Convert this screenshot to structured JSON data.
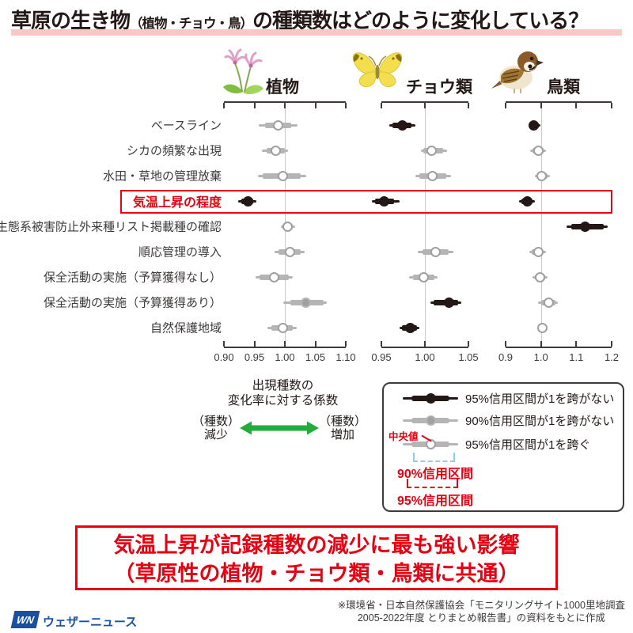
{
  "title": {
    "part1": "草原の生き物",
    "small": "（植物・チョウ・鳥）",
    "part2": "の種類数はどのように変化している？"
  },
  "axis_caption": {
    "line1": "出現種数の",
    "line2": "変化率に対する係数"
  },
  "arrow": {
    "left_line1": "（種数）",
    "left_line2": "減少",
    "right_line1": "（種数）",
    "right_line2": "増加"
  },
  "legend": {
    "items": [
      {
        "style": "black",
        "label": "95%信用区間が1を跨がない"
      },
      {
        "style": "gray",
        "label": "90%信用区間が1を跨がない"
      },
      {
        "style": "open",
        "label": "95%信用区間が1を跨ぐ"
      }
    ],
    "median_label": "中央値",
    "bracket_90_label": "90%信用区間",
    "bracket_95_label": "95%信用区間"
  },
  "conclusion": {
    "line1": "気温上昇が記録種数の減少に最も強い影響",
    "line2": "（草原性の植物・チョウ類・鳥類に共通）"
  },
  "footer": {
    "logo_text": "WN",
    "brand": "ウェザーニュース",
    "source_line1": "※環境省・日本自然保護協会「モニタリングサイト1000里地調査",
    "source_line2": "2005-2022年度 とりまとめ報告書」の資料をもとに作成"
  },
  "colors": {
    "accent_red": "#e60012",
    "marker_black": "#231815",
    "marker_gray": "#b5b5b6",
    "median_gray_fill": "#9fa0a0",
    "grid_gray": "#c9caca",
    "arrow_green": "#22ac38",
    "bracket_blue": "#8ecef2",
    "brand_blue": "#1a50a2",
    "title_underline_pink": "#f8c8c4"
  },
  "chart_data": {
    "type": "forest-dot-plot",
    "reference_value": 1.0,
    "highlight_index": 3,
    "categories": [
      "ベースライン",
      "シカの頻繁な出現",
      "水田・草地の管理放棄",
      "気温上昇の程度",
      "生態系被害防止外来種リスト掲載種の確認",
      "順応管理の導入",
      "保全活動の実施（予算獲得なし）",
      "保全活動の実施（予算獲得あり）",
      "自然保護地域"
    ],
    "series": [
      {
        "name": "植物",
        "icon": "flower-icon",
        "domain": [
          0.9,
          1.1
        ],
        "ticks": [
          "0.90",
          "0.95",
          "1.00",
          "1.05",
          "1.10"
        ],
        "points": [
          {
            "median": 0.989,
            "ci90": [
              0.968,
              1.011
            ],
            "ci95": [
              0.957,
              1.021
            ],
            "style": "open"
          },
          {
            "median": 0.985,
            "ci90": [
              0.97,
              1.0
            ],
            "ci95": [
              0.962,
              1.005
            ],
            "style": "open"
          },
          {
            "median": 0.997,
            "ci90": [
              0.963,
              1.026
            ],
            "ci95": [
              0.956,
              1.035
            ],
            "style": "open"
          },
          {
            "median": 0.939,
            "ci90": [
              0.929,
              0.948
            ],
            "ci95": [
              0.924,
              0.953
            ],
            "style": "black"
          },
          {
            "median": 1.004,
            "ci90": [
              0.996,
              1.013
            ],
            "ci95": [
              0.993,
              1.017
            ],
            "style": "open"
          },
          {
            "median": 1.009,
            "ci90": [
              0.989,
              1.026
            ],
            "ci95": [
              0.983,
              1.032
            ],
            "style": "open"
          },
          {
            "median": 0.982,
            "ci90": [
              0.959,
              1.006
            ],
            "ci95": [
              0.952,
              1.013
            ],
            "style": "open"
          },
          {
            "median": 1.035,
            "ci90": [
              1.009,
              1.063
            ],
            "ci95": [
              0.998,
              1.069
            ],
            "style": "gray"
          },
          {
            "median": 0.997,
            "ci90": [
              0.978,
              1.013
            ],
            "ci95": [
              0.972,
              1.019
            ],
            "style": "open"
          }
        ]
      },
      {
        "name": "チョウ類",
        "icon": "butterfly-icon",
        "domain": [
          0.95,
          1.05
        ],
        "ticks": [
          "0.95",
          "1.00",
          "1.05"
        ],
        "points": [
          {
            "median": 0.974,
            "ci90": [
              0.963,
              0.985
            ],
            "ci95": [
              0.959,
              0.989
            ],
            "style": "black"
          },
          {
            "median": 1.008,
            "ci90": [
              0.998,
              1.021
            ],
            "ci95": [
              0.995,
              1.025
            ],
            "style": "open"
          },
          {
            "median": 1.009,
            "ci90": [
              0.994,
              1.025
            ],
            "ci95": [
              0.989,
              1.03
            ],
            "style": "open"
          },
          {
            "median": 0.953,
            "ci90": [
              0.943,
              0.965
            ],
            "ci95": [
              0.939,
              0.971
            ],
            "style": "black"
          },
          null,
          {
            "median": 1.012,
            "ci90": [
              0.997,
              1.027
            ],
            "ci95": [
              0.992,
              1.033
            ],
            "style": "open"
          },
          {
            "median": 0.999,
            "ci90": [
              0.986,
              1.011
            ],
            "ci95": [
              0.982,
              1.015
            ],
            "style": "open"
          },
          {
            "median": 1.028,
            "ci90": [
              1.01,
              1.038
            ],
            "ci95": [
              1.006,
              1.042
            ],
            "style": "black"
          },
          {
            "median": 0.983,
            "ci90": [
              0.974,
              0.991
            ],
            "ci95": [
              0.971,
              0.994
            ],
            "style": "black"
          }
        ]
      },
      {
        "name": "鳥類",
        "icon": "bird-icon",
        "domain": [
          0.9,
          1.2
        ],
        "ticks": [
          "0.9",
          "1.0",
          "1.1",
          "1.2"
        ],
        "points": [
          {
            "median": 0.98,
            "ci90": [
              0.969,
              0.993
            ],
            "ci95": [
              0.964,
              0.998
            ],
            "style": "black"
          },
          {
            "median": 0.992,
            "ci90": [
              0.975,
              1.008
            ],
            "ci95": [
              0.969,
              1.014
            ],
            "style": "open"
          },
          {
            "median": 1.001,
            "ci90": [
              0.988,
              1.018
            ],
            "ci95": [
              0.983,
              1.025
            ],
            "style": "open"
          },
          {
            "median": 0.962,
            "ci90": [
              0.945,
              0.977
            ],
            "ci95": [
              0.937,
              0.983
            ],
            "style": "black"
          },
          {
            "median": 1.125,
            "ci90": [
              1.085,
              1.178
            ],
            "ci95": [
              1.073,
              1.189
            ],
            "style": "black"
          },
          {
            "median": 0.992,
            "ci90": [
              0.974,
              1.006
            ],
            "ci95": [
              0.968,
              1.014
            ],
            "style": "open"
          },
          {
            "median": 0.998,
            "ci90": [
              0.983,
              1.012
            ],
            "ci95": [
              0.977,
              1.018
            ],
            "style": "open"
          },
          {
            "median": 1.021,
            "ci90": [
              1.0,
              1.04
            ],
            "ci95": [
              0.992,
              1.047
            ],
            "style": "open"
          },
          {
            "median": 1.004,
            "ci90": [
              0.999,
              1.011
            ],
            "ci95": [
              0.995,
              1.014
            ],
            "style": "open"
          }
        ]
      }
    ]
  }
}
